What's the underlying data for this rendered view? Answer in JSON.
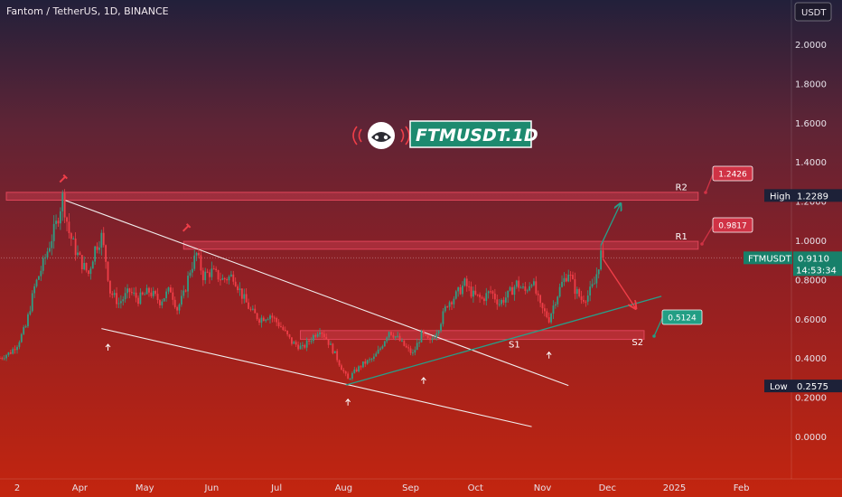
{
  "header": {
    "symbol_title": "Fantom / TetherUS, 1D, BINANCE",
    "currency": "USDT"
  },
  "logo": {
    "text": "FTMUSDT.1D"
  },
  "colors": {
    "up": "#2f9e84",
    "down": "#ef3e48",
    "trend_green": "#26a08a",
    "zone_red": "#e0455a",
    "label_green": "#229e84",
    "label_red": "#d03245",
    "axis_dark": "#1d2138"
  },
  "chart_data": {
    "type": "candlestick",
    "title": "Fantom / TetherUS, 1D, BINANCE",
    "x_tick_labels": [
      "2",
      "Apr",
      "May",
      "Jun",
      "Jul",
      "Aug",
      "Sep",
      "Oct",
      "Nov",
      "Dec",
      "2025",
      "Feb"
    ],
    "x_tick_days": [
      0,
      29,
      59,
      90,
      120,
      151,
      182,
      212,
      243,
      273,
      304,
      335
    ],
    "y_ticks": [
      "2.0000",
      "1.8000",
      "1.6000",
      "1.4000",
      "1.2000",
      "1.0000",
      "0.8000",
      "0.6000",
      "0.4000",
      "0.2000",
      "0.0000"
    ],
    "ylim": [
      -0.08,
      2.18
    ],
    "grid": false,
    "price_path": [
      [
        -8,
        0.4
      ],
      [
        -3,
        0.43
      ],
      [
        0,
        0.47
      ],
      [
        4,
        0.56
      ],
      [
        8,
        0.76
      ],
      [
        12,
        0.88
      ],
      [
        15,
        0.98
      ],
      [
        18,
        1.08
      ],
      [
        21,
        1.22
      ],
      [
        24,
        1.04
      ],
      [
        27,
        0.95
      ],
      [
        30,
        0.88
      ],
      [
        33,
        0.83
      ],
      [
        36,
        0.96
      ],
      [
        39,
        1.02
      ],
      [
        41,
        0.9
      ],
      [
        43,
        0.74
      ],
      [
        47,
        0.68
      ],
      [
        52,
        0.74
      ],
      [
        56,
        0.7
      ],
      [
        61,
        0.74
      ],
      [
        66,
        0.69
      ],
      [
        71,
        0.75
      ],
      [
        74,
        0.65
      ],
      [
        77,
        0.72
      ],
      [
        80,
        0.85
      ],
      [
        83,
        0.93
      ],
      [
        86,
        0.82
      ],
      [
        90,
        0.84
      ],
      [
        95,
        0.8
      ],
      [
        100,
        0.82
      ],
      [
        104,
        0.72
      ],
      [
        108,
        0.64
      ],
      [
        112,
        0.6
      ],
      [
        117,
        0.62
      ],
      [
        122,
        0.56
      ],
      [
        127,
        0.48
      ],
      [
        132,
        0.45
      ],
      [
        136,
        0.5
      ],
      [
        140,
        0.55
      ],
      [
        143,
        0.5
      ],
      [
        147,
        0.42
      ],
      [
        150,
        0.35
      ],
      [
        153,
        0.29
      ],
      [
        156,
        0.33
      ],
      [
        160,
        0.37
      ],
      [
        165,
        0.4
      ],
      [
        168,
        0.45
      ],
      [
        172,
        0.54
      ],
      [
        176,
        0.5
      ],
      [
        180,
        0.45
      ],
      [
        183,
        0.42
      ],
      [
        187,
        0.52
      ],
      [
        191,
        0.48
      ],
      [
        195,
        0.56
      ],
      [
        199,
        0.68
      ],
      [
        203,
        0.72
      ],
      [
        207,
        0.78
      ],
      [
        211,
        0.72
      ],
      [
        215,
        0.7
      ],
      [
        219,
        0.74
      ],
      [
        223,
        0.68
      ],
      [
        227,
        0.72
      ],
      [
        231,
        0.78
      ],
      [
        235,
        0.74
      ],
      [
        238,
        0.8
      ],
      [
        242,
        0.66
      ],
      [
        246,
        0.6
      ],
      [
        249,
        0.7
      ],
      [
        252,
        0.78
      ],
      [
        255,
        0.84
      ],
      [
        258,
        0.75
      ],
      [
        261,
        0.7
      ],
      [
        264,
        0.72
      ],
      [
        267,
        0.78
      ],
      [
        270,
        0.93
      ],
      [
        271,
        0.911
      ]
    ],
    "high": {
      "label": "High",
      "value": "1.2289"
    },
    "low": {
      "label": "Low",
      "value": "0.2575"
    },
    "last_price": {
      "symbol": "FTMUSDT",
      "value": "0.9110",
      "countdown": "14:53:34"
    },
    "levels": [
      {
        "name": "R2",
        "value": "1.2426",
        "color": "red"
      },
      {
        "name": "R1",
        "value": "0.9817",
        "color": "red"
      },
      {
        "name": "S1",
        "value": "",
        "color": "green"
      },
      {
        "name": "S2",
        "value": "0.5124",
        "color": "green"
      }
    ],
    "zones": [
      {
        "name": "R2",
        "from": 1.205,
        "to": 1.245
      },
      {
        "name": "R1",
        "from": 0.955,
        "to": 0.995
      },
      {
        "name": "S2",
        "from": 0.495,
        "to": 0.54
      }
    ]
  }
}
